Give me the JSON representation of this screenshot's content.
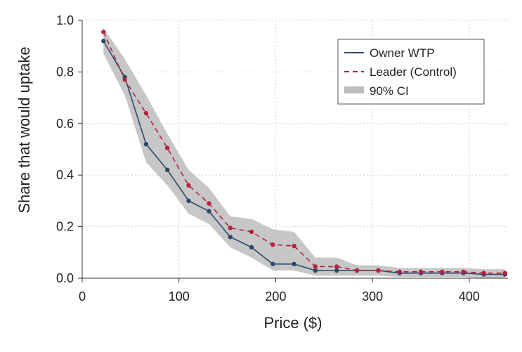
{
  "chart_data": {
    "type": "line",
    "title": "",
    "xlabel": "Price ($)",
    "ylabel": "Share that would uptake",
    "xlim": [
      0,
      440
    ],
    "ylim": [
      0,
      1.0
    ],
    "xticks": [
      0,
      100,
      200,
      300,
      400
    ],
    "yticks": [
      0.0,
      0.2,
      0.4,
      0.6,
      0.8,
      1.0
    ],
    "xtick_labels": [
      "0",
      "100",
      "200",
      "300",
      "400"
    ],
    "ytick_labels": [
      "0.0",
      "0.2",
      "0.4",
      "0.6",
      "0.8",
      "1.0"
    ],
    "grid": true,
    "legend_position": "top-right",
    "x": [
      22,
      44,
      66,
      88,
      110,
      131,
      153,
      175,
      197,
      219,
      241,
      263,
      284,
      306,
      328,
      350,
      372,
      394,
      415,
      437
    ],
    "series": [
      {
        "name": "Owner WTP",
        "color": "#2b4a6b",
        "style": "solid",
        "values": [
          0.92,
          0.78,
          0.52,
          0.42,
          0.3,
          0.26,
          0.16,
          0.12,
          0.055,
          0.055,
          0.03,
          0.03,
          0.03,
          0.03,
          0.02,
          0.02,
          0.02,
          0.02,
          0.015,
          0.015
        ]
      },
      {
        "name": "Leader (Control)",
        "color": "#b5213f",
        "style": "dashed",
        "values": [
          0.955,
          0.77,
          0.64,
          0.505,
          0.36,
          0.29,
          0.195,
          0.18,
          0.13,
          0.125,
          0.045,
          0.045,
          0.03,
          0.03,
          0.025,
          0.025,
          0.025,
          0.025,
          0.02,
          0.02
        ]
      }
    ],
    "ci": {
      "name": "90% CI",
      "color": "#bdbdbd",
      "lower": [
        0.87,
        0.71,
        0.45,
        0.36,
        0.25,
        0.21,
        0.12,
        0.08,
        0.03,
        0.03,
        0.01,
        0.01,
        0.01,
        0.01,
        0.005,
        0.005,
        0.005,
        0.005,
        0.0,
        0.0
      ],
      "upper": [
        0.97,
        0.85,
        0.71,
        0.56,
        0.42,
        0.35,
        0.24,
        0.23,
        0.19,
        0.18,
        0.08,
        0.08,
        0.05,
        0.05,
        0.04,
        0.04,
        0.04,
        0.04,
        0.035,
        0.035
      ]
    },
    "legend": [
      "Owner WTP",
      "Leader (Control)",
      "90% CI"
    ]
  }
}
